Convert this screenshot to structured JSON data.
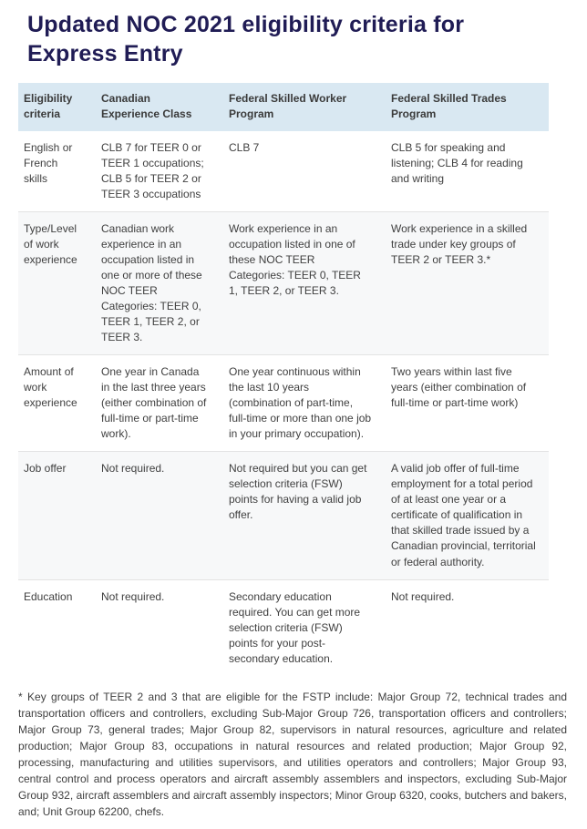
{
  "page": {
    "title": "Updated NOC 2021 eligibility criteria for Express Entry"
  },
  "colors": {
    "title_text": "#201c55",
    "header_bg": "#d9e8f2",
    "alt_row_bg": "#f7f8f9",
    "body_text": "#3f3f3f",
    "row_border": "#e3e3e3"
  },
  "table": {
    "headers": [
      "Eligibility criteria",
      "Canadian Experience Class",
      "Federal Skilled Worker Program",
      "Federal Skilled Trades Program"
    ],
    "rows": [
      {
        "criteria": "English or French skills",
        "cec": "CLB 7 for TEER 0 or TEER 1 occupations; CLB 5 for TEER 2 or TEER 3 occupations",
        "fswp": "CLB 7",
        "fstp": "CLB 5 for speaking and listening; CLB 4 for reading and writing"
      },
      {
        "criteria": "Type/Level of work experience",
        "cec": "Canadian work experience in an occupation listed in one or more of these NOC TEER Categories: TEER 0, TEER 1, TEER 2, or TEER 3.",
        "fswp": "Work experience in an occupation listed in one of these NOC TEER Categories: TEER 0, TEER 1, TEER 2, or TEER 3.",
        "fstp": "Work experience in a skilled trade under key groups of TEER 2 or TEER 3.*"
      },
      {
        "criteria": "Amount of work experience",
        "cec": "One year in Canada in the last three years (either combination of full-time or part-time work).",
        "fswp": "One year continuous within the last 10 years (combination of part-time, full-time or more than one job in your primary occupation).",
        "fstp": "Two years within last five years (either combination of full-time or part-time work)"
      },
      {
        "criteria": "Job offer",
        "cec": "Not required.",
        "fswp": "Not required but you can get selection criteria (FSW) points for having a valid job offer.",
        "fstp": "A valid job offer of full-time employment for a total period of at least one year or a certificate of qualification in that skilled trade issued by a Canadian provincial, territorial or federal authority."
      },
      {
        "criteria": "Education",
        "cec": "Not required.",
        "fswp": "Secondary education required. You can get more selection criteria (FSW) points for your post-secondary education.",
        "fstp": "Not required."
      }
    ]
  },
  "footnote": "* Key groups of TEER 2 and 3 that are eligible for the FSTP include: Major Group 72, technical trades and transportation officers and controllers, excluding Sub-Major Group 726, transportation officers and controllers; Major Group 73, general trades; Major Group 82, supervisors in natural resources, agriculture and related production; Major Group 83, occupations in natural resources and related production; Major Group 92, processing, manufacturing and utilities supervisors, and utilities operators and controllers; Major Group 93, central control and process operators and aircraft assembly assemblers and inspectors, excluding Sub-Major Group 932, aircraft assemblers and aircraft assembly inspectors; Minor Group 6320, cooks, butchers and bakers, and; Unit Group 62200, chefs."
}
